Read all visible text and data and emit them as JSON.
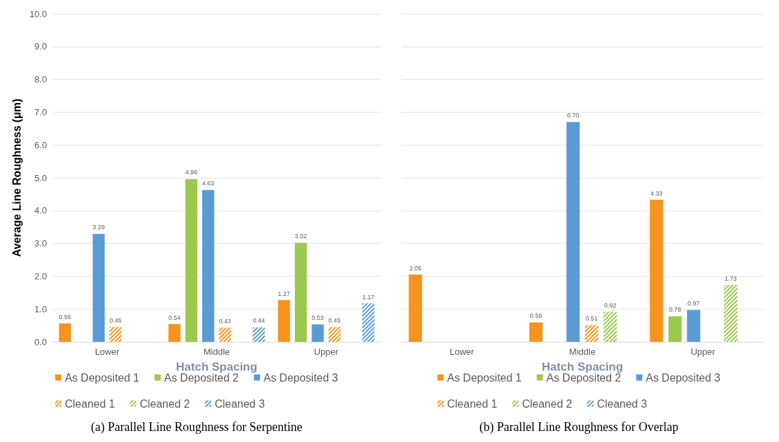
{
  "chart_data": [
    {
      "type": "bar",
      "title": "(a) Parallel Line Roughness for Serpentine",
      "xlabel": "Hatch Spacing",
      "ylabel": "Average Line Roughness (μm)",
      "categories": [
        "Lower",
        "Middle",
        "Upper"
      ],
      "ylim": [
        0,
        10
      ],
      "yticks": [
        {
          "value": 0,
          "label": "0.0"
        },
        {
          "value": 1,
          "label": "1.0"
        },
        {
          "value": 2,
          "label": "2.0"
        },
        {
          "value": 3,
          "label": "3.0"
        },
        {
          "value": 4,
          "label": "4.0"
        },
        {
          "value": 5,
          "label": "5.0"
        },
        {
          "value": 6,
          "label": "6.0"
        },
        {
          "value": 7,
          "label": "7.0"
        },
        {
          "value": 8,
          "label": "8.0"
        },
        {
          "value": 9,
          "label": "9.0"
        },
        {
          "value": 10,
          "label": "10.0"
        }
      ],
      "grid": "y",
      "legend": "bottom",
      "series": [
        {
          "name": "As Deposited 1",
          "color": "#f7931e",
          "values": [
            0.56,
            0.54,
            1.27
          ],
          "value_labels": [
            "0.56",
            "0.54",
            "1.27"
          ]
        },
        {
          "name": "As Deposited 2",
          "color": "#9bc94e",
          "values": [
            null,
            4.96,
            3.02
          ],
          "value_labels": [
            null,
            "4.96",
            "3.02"
          ]
        },
        {
          "name": "As Deposited 3",
          "color": "#5b9bd5",
          "values": [
            3.29,
            4.63,
            0.53
          ],
          "value_labels": [
            "3.29",
            "4.63",
            "0.53"
          ]
        },
        {
          "name": "Cleaned 1",
          "color": "#f7931e",
          "values": [
            0.45,
            0.43,
            0.45
          ],
          "value_labels": [
            "0.45",
            "0.43",
            "0.45"
          ]
        },
        {
          "name": "Cleaned 2",
          "color": "#9bc94e",
          "values": [
            null,
            null,
            null
          ],
          "value_labels": [
            null,
            null,
            null
          ]
        },
        {
          "name": "Cleaned 3",
          "color": "#5b9bd5",
          "values": [
            null,
            0.44,
            1.17
          ],
          "value_labels": [
            null,
            "0.44",
            "1.17"
          ]
        }
      ]
    },
    {
      "type": "bar",
      "title": "(b) Parallel Line Roughness for Overlap",
      "xlabel": "Hatch Spacing",
      "categories": [
        "Lower",
        "Middle",
        "Upper"
      ],
      "ylim": [
        0,
        10
      ],
      "yticks": [
        0,
        1,
        2,
        3,
        4,
        5,
        6,
        7,
        8,
        9,
        10
      ],
      "tick_labels": "x",
      "grid": "y",
      "legend": "bottom",
      "series": [
        {
          "name": "As Deposited 1",
          "color": "#f7931e",
          "values": [
            2.05,
            0.59,
            4.33
          ],
          "value_labels": [
            "2.05",
            "0.59",
            "4.33"
          ]
        },
        {
          "name": "As Deposited 2",
          "color": "#9bc94e",
          "values": [
            null,
            null,
            0.78
          ],
          "value_labels": [
            null,
            null,
            "0.78"
          ]
        },
        {
          "name": "As Deposited 3",
          "color": "#5b9bd5",
          "values": [
            null,
            6.7,
            0.97
          ],
          "value_labels": [
            null,
            "6.70",
            "0.97"
          ]
        },
        {
          "name": "Cleaned 1",
          "color": "#f7931e",
          "values": [
            null,
            0.51,
            null
          ],
          "value_labels": [
            null,
            "0.51",
            null
          ]
        },
        {
          "name": "Cleaned 2",
          "color": "#9bc94e",
          "values": [
            null,
            0.92,
            1.73
          ],
          "value_labels": [
            null,
            "0.92",
            "1.73"
          ]
        },
        {
          "name": "Cleaned 3",
          "color": "#5b9bd5",
          "values": [
            null,
            null,
            null
          ],
          "value_labels": [
            null,
            null,
            null
          ]
        }
      ]
    }
  ]
}
